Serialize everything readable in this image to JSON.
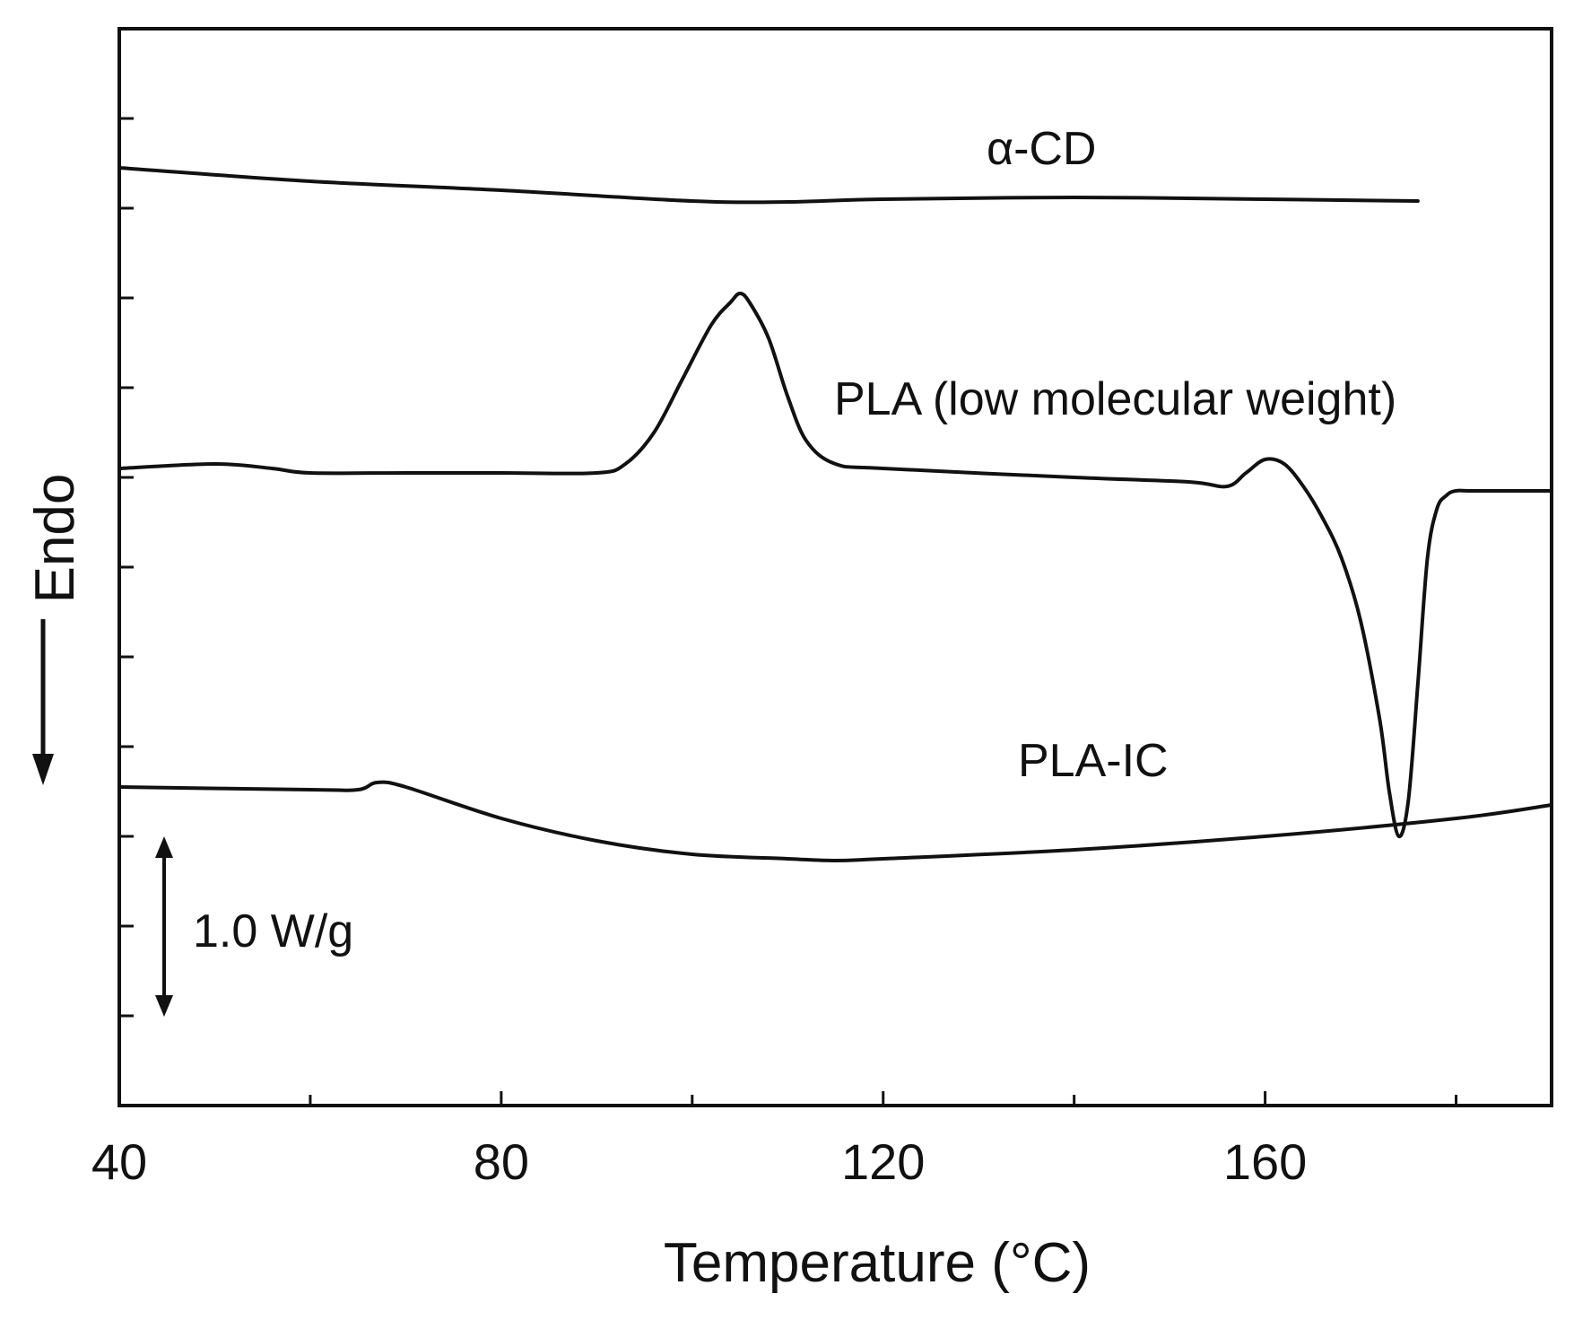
{
  "chart_data": {
    "type": "line",
    "title": "",
    "xlabel": "Temperature (°C)",
    "ylabel": "Endo",
    "xlim": [
      40,
      190
    ],
    "ylim": [
      0,
      12
    ],
    "x_ticks": [
      40,
      80,
      120,
      160
    ],
    "y_tick_labels_shown": false,
    "grid": false,
    "legend": "none",
    "scale_bar": {
      "label": "1.0 W/g",
      "value": 1.0,
      "units": "W/g"
    },
    "series": [
      {
        "name": "α-CD",
        "label": "α-CD",
        "x": [
          40,
          60,
          80,
          100,
          110,
          120,
          140,
          160,
          176
        ],
        "y": [
          10.45,
          10.3,
          10.2,
          10.08,
          10.07,
          10.1,
          10.12,
          10.1,
          10.08
        ]
      },
      {
        "name": "PLA (low molecular weight)",
        "label": "PLA (low molecular weight)",
        "x": [
          40,
          50,
          56,
          60,
          70,
          80,
          90,
          93,
          96,
          99,
          102,
          104,
          105,
          106,
          108,
          110,
          112,
          115,
          120,
          140,
          152,
          156,
          158,
          160,
          162,
          164,
          166,
          168,
          170,
          172,
          173,
          174,
          175,
          176,
          177,
          178,
          179,
          180,
          182,
          190
        ],
        "y": [
          7.1,
          7.15,
          7.1,
          7.05,
          7.05,
          7.05,
          7.05,
          7.15,
          7.5,
          8.1,
          8.7,
          8.95,
          9.05,
          8.95,
          8.55,
          7.9,
          7.4,
          7.15,
          7.1,
          7.0,
          6.95,
          6.9,
          7.05,
          7.2,
          7.15,
          6.9,
          6.55,
          6.1,
          5.4,
          4.3,
          3.5,
          3.0,
          3.4,
          4.7,
          6.1,
          6.65,
          6.8,
          6.85,
          6.85,
          6.85
        ]
      },
      {
        "name": "PLA-IC",
        "label": "PLA-IC",
        "x": [
          40,
          60,
          65,
          67,
          70,
          80,
          90,
          100,
          110,
          115,
          120,
          140,
          160,
          180,
          190
        ],
        "y": [
          3.55,
          3.52,
          3.52,
          3.6,
          3.55,
          3.2,
          2.95,
          2.8,
          2.75,
          2.73,
          2.75,
          2.85,
          3.0,
          3.2,
          3.35
        ]
      }
    ]
  }
}
